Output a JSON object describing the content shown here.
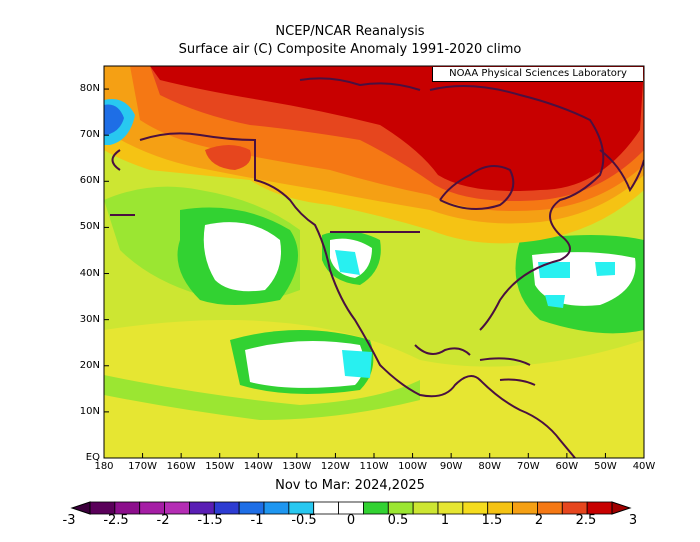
{
  "title": "NCEP/NCAR Reanalysis",
  "subtitle_line": "Surface air (C) Composite Anomaly 1991-2020 climo",
  "period_label": "Nov to Mar: 2024,2025",
  "credit": "NOAA Physical Sciences Laboratory",
  "lat_labels": [
    "80N",
    "70N",
    "60N",
    "50N",
    "40N",
    "30N",
    "20N",
    "10N",
    "EQ"
  ],
  "lon_labels": [
    "180",
    "170W",
    "160W",
    "150W",
    "140W",
    "130W",
    "120W",
    "110W",
    "100W",
    "90W",
    "80W",
    "70W",
    "60W",
    "50W",
    "40W"
  ],
  "colorbar": {
    "labels": [
      "-3",
      "-2.5",
      "-2",
      "-1.5",
      "-1",
      "-0.5",
      "0",
      "0.5",
      "1",
      "1.5",
      "2",
      "2.5",
      "3"
    ],
    "colors": [
      "#5a005a",
      "#8c0f8c",
      "#a51ea5",
      "#b42db4",
      "#5a1eb4",
      "#2d3cd2",
      "#1e6ee6",
      "#1e96f0",
      "#28c8f0",
      "#ffffff",
      "#ffffff",
      "#32d232",
      "#9be632",
      "#cde632",
      "#e6e632",
      "#f5dc1e",
      "#f5c314",
      "#f5a014",
      "#f57814",
      "#e6461e",
      "#c80000"
    ]
  },
  "map": {
    "extent": {
      "lon_min": -180,
      "lon_max": -40,
      "lat_min": 0,
      "lat_max": 85
    },
    "palette": {
      "dark_red": "#c80000",
      "red": "#e6461e",
      "orange": "#f57814",
      "light_orange": "#f5a014",
      "amber": "#f5c314",
      "yellow": "#e6e632",
      "yellow_green": "#cde632",
      "green": "#9be632",
      "bright_green": "#32d232",
      "white": "#ffffff",
      "cyan": "#28f0f0",
      "blue": "#1e6ee6",
      "coast": "#4a1040"
    }
  }
}
